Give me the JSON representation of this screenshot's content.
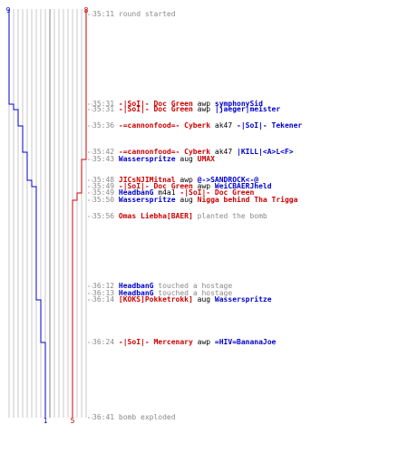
{
  "counts": {
    "blue_start": "9",
    "red_start": "8",
    "blue_end": "1",
    "red_end": "5"
  },
  "colors": {
    "blue": "#0000cc",
    "red": "#cc0000",
    "grid": "#c8c8c8",
    "dark_grid": "#808080",
    "time": "#8a8a8a"
  },
  "events": [
    {
      "time": "35:11",
      "text": "round started"
    },
    {
      "time": "35:31",
      "killer": "-|SoI|- Doc Green",
      "kcolor": "red",
      "weapon": "awp",
      "victim": "symphonySid",
      "vcolor": "blue"
    },
    {
      "time": "35:31",
      "killer": "-|SoI|- Doc Green",
      "kcolor": "red",
      "weapon": "awp",
      "victim": "|jaeger|meister",
      "vcolor": "blue"
    },
    {
      "time": "35:36",
      "killer": "-=cannonfood=- Cyberk",
      "kcolor": "red",
      "weapon": "ak47",
      "victim": "-|SoI|- Tekener",
      "vcolor": "blue"
    },
    {
      "time": "35:42",
      "killer": "-=cannonfood=- Cyberk",
      "kcolor": "red",
      "weapon": "ak47",
      "victim": "|KILL|<A>L<F>",
      "vcolor": "blue"
    },
    {
      "time": "35:43",
      "killer": "Wasserspritze",
      "kcolor": "blue",
      "weapon": "aug",
      "victim": "UMAX",
      "vcolor": "red"
    },
    {
      "time": "35:48",
      "killer": "JICsNJIMitnal",
      "kcolor": "red",
      "weapon": "awp",
      "victim": "@->SANDROCK<-@",
      "vcolor": "blue"
    },
    {
      "time": "35:49",
      "killer": "-|SoI|- Doc Green",
      "kcolor": "red",
      "weapon": "awp",
      "victim": "WeiCBAERJheld",
      "vcolor": "blue"
    },
    {
      "time": "35:49",
      "killer": "HeadbanG",
      "kcolor": "blue",
      "weapon": "m4a1",
      "victim": "-|SoI|- Doc Green",
      "vcolor": "red"
    },
    {
      "time": "35:50",
      "killer": "Wasserspritze",
      "kcolor": "blue",
      "weapon": "aug",
      "victim": "Nigga behind Tha Trigga",
      "vcolor": "red"
    },
    {
      "time": "35:56",
      "actor": "Omas Liebha[BAER]",
      "acolor": "red",
      "action": "planted the bomb"
    },
    {
      "time": "36:12",
      "actor": "HeadbanG",
      "acolor": "blue",
      "action": "touched a hostage"
    },
    {
      "time": "36:13",
      "actor": "HeadbanG",
      "acolor": "blue",
      "action": "touched a hostage"
    },
    {
      "time": "36:14",
      "killer": "[KOKS]Pokketrokk]",
      "kcolor": "red",
      "weapon": "aug",
      "victim": "Wasserspritze",
      "vcolor": "blue"
    },
    {
      "time": "36:24",
      "killer": "-|SoI|- Mercenary",
      "kcolor": "red",
      "weapon": "awp",
      "victim": "=HIV=BananaJoe",
      "vcolor": "blue"
    },
    {
      "time": "36:41",
      "text": "bomb exploded"
    }
  ]
}
